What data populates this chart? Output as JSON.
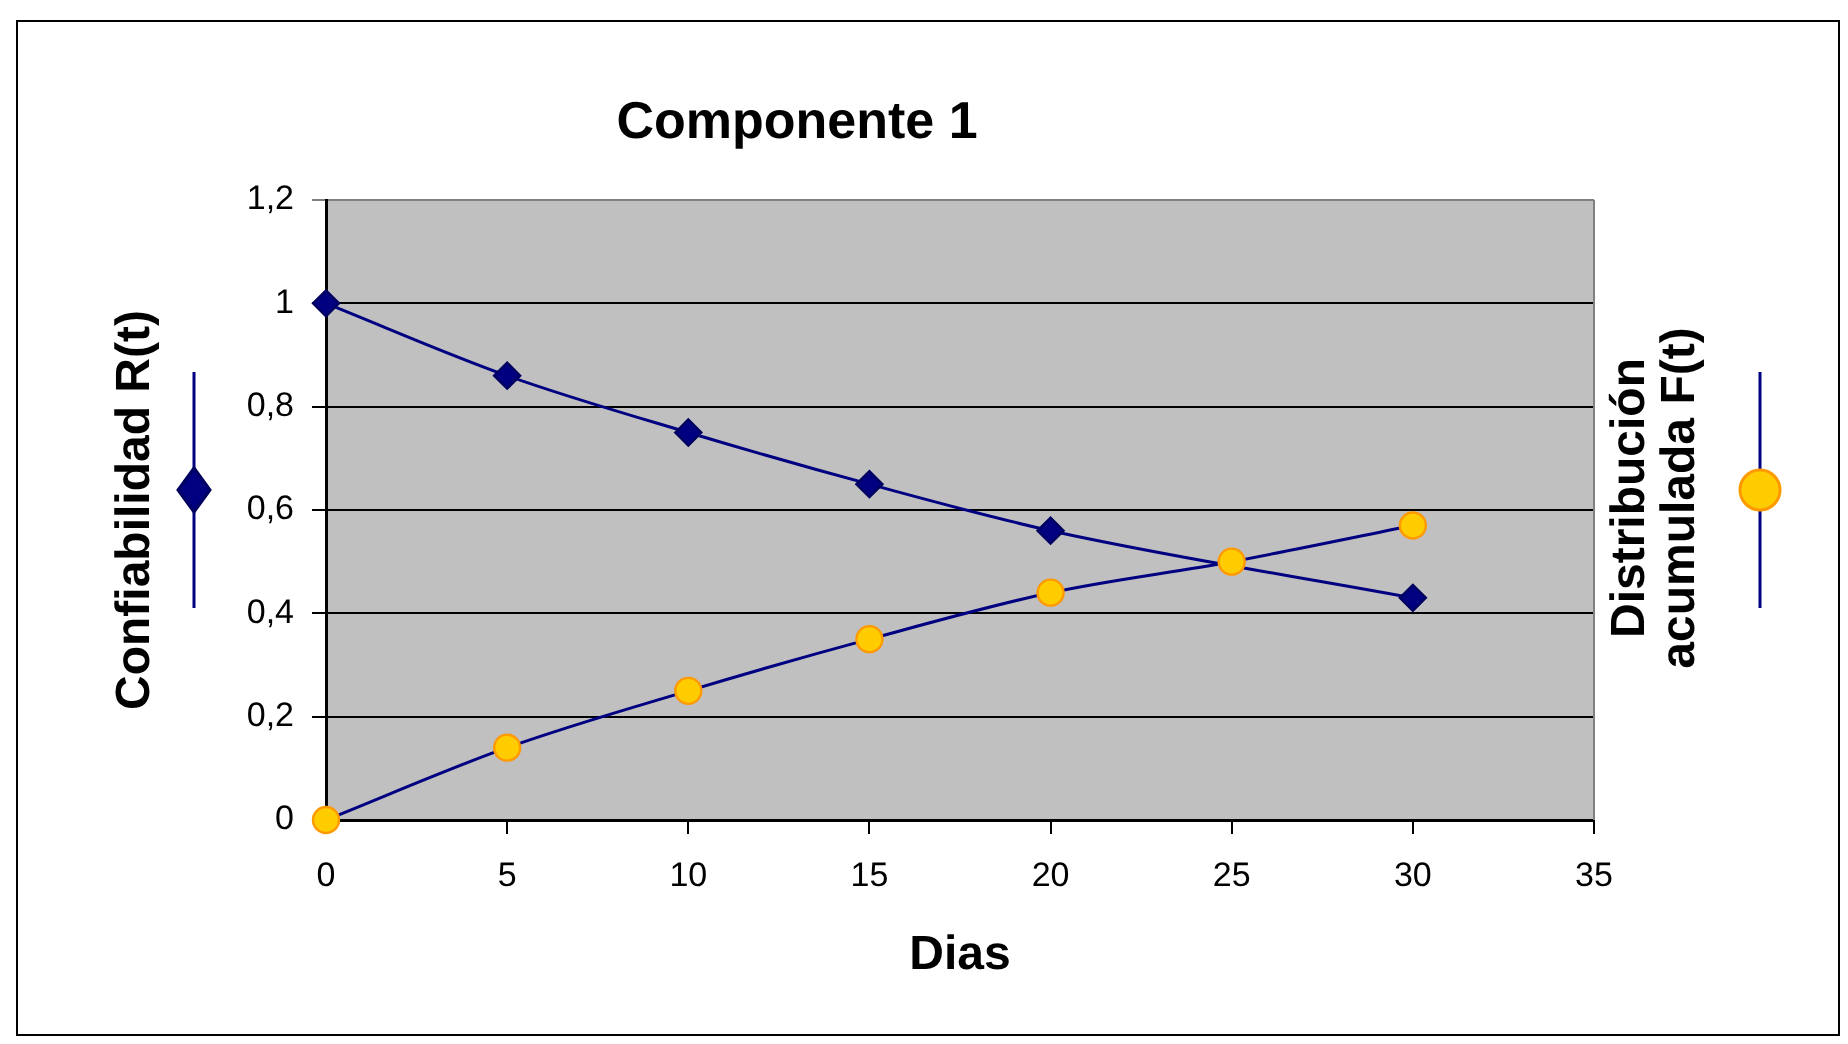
{
  "chart_data": {
    "type": "line",
    "title": "Componente 1",
    "xlabel": "Dias",
    "ylabel": "Confiabilidad R(t)",
    "y2label": "Distribución acumulada F(t)",
    "x": [
      0,
      5,
      10,
      15,
      20,
      25,
      30
    ],
    "series": [
      {
        "color": "#000080",
        "marker": "diamond",
        "values": [
          1,
          0.86,
          0.75,
          0.65,
          0.56,
          null,
          0.43
        ]
      },
      {
        "color": "#ffcc00",
        "marker": "circle",
        "values": [
          0,
          0.14,
          0.25,
          0.35,
          0.44,
          0.5,
          0.57
        ]
      }
    ],
    "xlim": [
      0,
      35
    ],
    "xticks": [
      0,
      5,
      10,
      15,
      20,
      25,
      30,
      35
    ],
    "ylim": [
      0,
      1.2
    ],
    "yticks": [
      0,
      {
        "value": 0.2,
        "label": "0,2"
      },
      {
        "value": 0.4,
        "label": "0,4"
      },
      {
        "value": 0.6,
        "label": "0,6"
      },
      {
        "value": 0.8,
        "label": "0,8"
      },
      1,
      {
        "value": 1.2,
        "label": "1,2"
      }
    ],
    "grid": "y",
    "line_style": "solid"
  }
}
